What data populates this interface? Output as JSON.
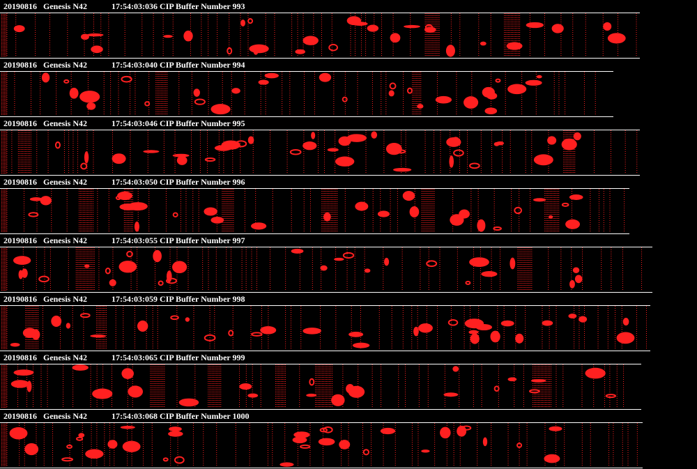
{
  "strips": [
    {
      "date": "20190816",
      "platform": "Genesis N42",
      "label": "17:54:03:036 CIP Buffer Number 993"
    },
    {
      "date": "20190816",
      "platform": "Genesis N42",
      "label": "17:54:03:040 CIP Buffer Number 994"
    },
    {
      "date": "20190816",
      "platform": "Genesis N42",
      "label": "17:54:03:046 CIP Buffer Number 995"
    },
    {
      "date": "20190816",
      "platform": "Genesis N42",
      "label": "17:54:03:050 CIP Buffer Number 996"
    },
    {
      "date": "20190816",
      "platform": "Genesis N42",
      "label": "17:54:03:055 CIP Buffer Number 997"
    },
    {
      "date": "20190816",
      "platform": "Genesis N42",
      "label": "17:54:03:059 CIP Buffer Number 998"
    },
    {
      "date": "20190816",
      "platform": "Genesis N42",
      "label": "17:54:03:065 CIP Buffer Number 999"
    },
    {
      "date": "20190816",
      "platform": "Genesis N42",
      "label": "17:54:03:068 CIP Buffer Number 1000"
    }
  ]
}
